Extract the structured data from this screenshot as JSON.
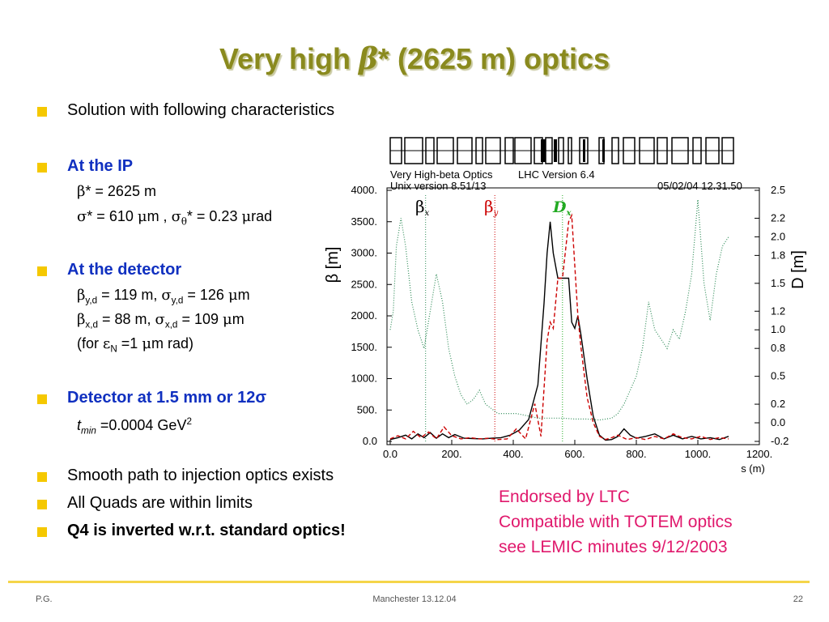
{
  "title": {
    "pre": "Very high ",
    "beta": "β",
    "star": "*",
    "post": " (2625 m) optics"
  },
  "bullets": {
    "solution": "Solution with following characteristics",
    "at_ip": "At the IP",
    "at_detector": "At the detector",
    "detector_pos": "Detector at 1.5 mm or 12σ",
    "smooth": "Smooth path to injection optics exists",
    "quads": "All Quads are within limits",
    "q4": "Q4 is inverted w.r.t. standard optics!"
  },
  "ip": {
    "l1": {
      "s1": "β",
      "s2": "* = 2625 m"
    },
    "l2": {
      "s1": "σ",
      "s2": "* = 610 ",
      "s3": "μ",
      "s4": "m , ",
      "s5": "σ",
      "s6": "θ",
      "s7": "* = 0.23 ",
      "s8": "μ",
      "s9": "rad"
    }
  },
  "detector": {
    "l1": {
      "s1": "β",
      "s2": "y,d",
      "s3": " = 119 m,  ",
      "s4": "σ",
      "s5": "y,d",
      "s6": " = 126 ",
      "s7": "μ",
      "s8": "m"
    },
    "l2": {
      "s1": "β",
      "s2": "x,d",
      "s3": " = 88 m,  ",
      "s4": "σ",
      "s5": "x,d",
      "s6": " = 109 ",
      "s7": "μ",
      "s8": "m"
    },
    "l3": {
      "s1": "(for ",
      "s2": "ε",
      "s3": "N",
      "s4": " =1 ",
      "s5": "μ",
      "s6": "m rad)"
    }
  },
  "tmin": {
    "t": "t",
    "sub": "min",
    "rest": " =0.0004 GeV",
    "sup": "2"
  },
  "endorsed": [
    "Endorsed by LTC",
    "Compatible with TOTEM optics",
    "see LEMIC minutes 9/12/2003"
  ],
  "footer": {
    "left": "P.G.",
    "center": "Manchester 13.12.04",
    "right": "22"
  },
  "colors": {
    "title": "#8a8a1e",
    "bullet": "#f5c800",
    "blue_heading": "#1030c0",
    "pink": "#e0186c",
    "beta_x": "#2e8b57",
    "beta_y": "#cc0000",
    "dx": "#22aa22",
    "footer_rule": "#f5d54a"
  },
  "chart_data": {
    "type": "line",
    "header": {
      "l1a": "Very High-beta Optics",
      "l1b": "LHC Version 6.4",
      "l2a": "Unix version 8.51/13",
      "l2b": "05/02/04  12.31.50"
    },
    "xlabel": "s (m)",
    "ylabel_left": "β  [m]",
    "ylabel_right": "D  [m]",
    "xlim": [
      0,
      1200
    ],
    "ylim_left": [
      0,
      4000
    ],
    "ylim_right": [
      -0.2,
      2.5
    ],
    "x_ticks": [
      "0.0",
      "200.",
      "400.",
      "600.",
      "800.",
      "1000.",
      "1200."
    ],
    "y_ticks_left": [
      "0.0",
      "500.",
      "1000.",
      "1500.",
      "2000.",
      "2500.",
      "3000.",
      "3500.",
      "4000."
    ],
    "y_ticks_right": [
      "-0.2",
      "0.0",
      "0.2",
      "0.5",
      "0.8",
      "1.0",
      "1.2",
      "1.5",
      "1.8",
      "2.0",
      "2.2",
      "2.5"
    ],
    "legend": {
      "bx": "β",
      "bx_sub": "x",
      "by": "β",
      "by_sub": "y",
      "dx": "D",
      "dx_sub": "x"
    },
    "series": [
      {
        "name": "βx",
        "x": [
          0,
          25,
          50,
          70,
          90,
          110,
          130,
          150,
          170,
          190,
          210,
          240,
          270,
          300,
          330,
          360,
          390,
          420,
          450,
          480,
          500,
          510,
          520,
          530,
          545,
          560,
          580,
          590,
          600,
          610,
          620,
          640,
          660,
          680,
          700,
          720,
          740,
          760,
          780,
          800,
          830,
          860,
          890,
          920,
          950,
          980,
          1010,
          1040,
          1070,
          1100
        ],
        "y": [
          30,
          60,
          100,
          40,
          120,
          60,
          140,
          50,
          120,
          60,
          110,
          50,
          45,
          40,
          50,
          60,
          100,
          180,
          350,
          900,
          2200,
          3000,
          3500,
          3000,
          2600,
          2600,
          2600,
          1900,
          1800,
          2000,
          1700,
          1000,
          400,
          100,
          20,
          30,
          80,
          200,
          100,
          50,
          80,
          120,
          40,
          100,
          40,
          80,
          40,
          60,
          30,
          80
        ]
      },
      {
        "name": "βy",
        "x": [
          0,
          25,
          50,
          75,
          100,
          125,
          150,
          175,
          200,
          230,
          260,
          290,
          320,
          350,
          380,
          410,
          440,
          470,
          490,
          510,
          520,
          530,
          545,
          560,
          580,
          590,
          600,
          610,
          620,
          640,
          660,
          680,
          700,
          720,
          740,
          770,
          800,
          830,
          860,
          890,
          920,
          950,
          980,
          1010,
          1040,
          1070,
          1100
        ],
        "y": [
          40,
          90,
          40,
          160,
          60,
          150,
          40,
          230,
          90,
          40,
          60,
          40,
          50,
          30,
          40,
          200,
          40,
          600,
          80,
          1600,
          1900,
          1800,
          2600,
          2600,
          3500,
          3600,
          2800,
          2000,
          1500,
          700,
          300,
          80,
          30,
          60,
          100,
          30,
          60,
          30,
          80,
          40,
          120,
          60,
          40,
          80,
          30,
          60,
          40
        ]
      },
      {
        "name": "Dx",
        "axis": "right",
        "x": [
          0,
          10,
          20,
          35,
          50,
          70,
          90,
          110,
          130,
          150,
          170,
          190,
          210,
          230,
          250,
          270,
          290,
          310,
          330,
          350,
          380,
          410,
          440,
          480,
          520,
          560,
          600,
          640,
          680,
          720,
          740,
          760,
          780,
          800,
          820,
          840,
          860,
          880,
          900,
          920,
          940,
          960,
          980,
          1000,
          1020,
          1040,
          1060,
          1080,
          1100
        ],
        "y": [
          1.0,
          1.2,
          1.9,
          2.2,
          1.9,
          1.3,
          1.0,
          0.8,
          1.2,
          1.6,
          1.3,
          0.8,
          0.5,
          0.3,
          0.2,
          0.25,
          0.35,
          0.2,
          0.15,
          0.1,
          0.1,
          0.1,
          0.08,
          0.05,
          0.05,
          0.05,
          0.04,
          0.04,
          0.03,
          0.05,
          0.1,
          0.2,
          0.35,
          0.5,
          0.8,
          1.3,
          1.0,
          0.9,
          0.8,
          1.0,
          0.9,
          1.2,
          1.6,
          2.4,
          1.5,
          1.1,
          1.6,
          1.9,
          2.0
        ]
      }
    ],
    "markers_x": [
      {
        "x": 115,
        "color": "#2e8b57"
      },
      {
        "x": 340,
        "color": "#cc0000"
      },
      {
        "x": 560,
        "color": "#22aa22"
      }
    ]
  }
}
